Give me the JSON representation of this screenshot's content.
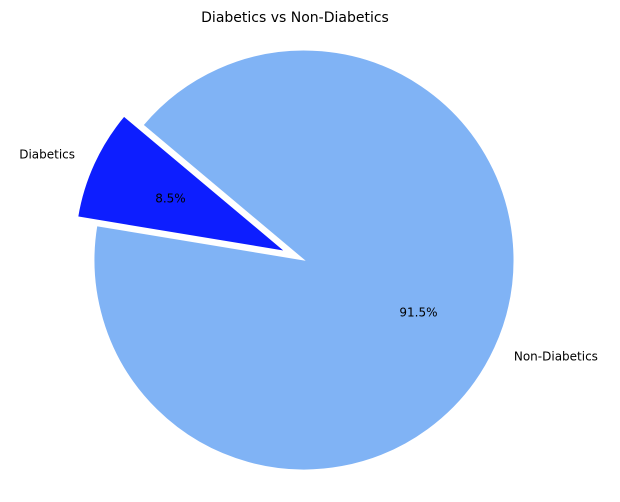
{
  "chart_data": {
    "type": "pie",
    "title": "Diabetics vs Non-Diabetics",
    "slices": [
      {
        "label": "Diabetics",
        "value": 8.5,
        "pct_label": "8.5%",
        "color": "#0d1eff",
        "exploded": true
      },
      {
        "label": "Non-Diabetics",
        "value": 91.5,
        "pct_label": "91.5%",
        "color": "#80b3f5",
        "exploded": false
      }
    ],
    "start_angle_deg": 140,
    "direction": "counterclockwise",
    "legend": "none"
  }
}
